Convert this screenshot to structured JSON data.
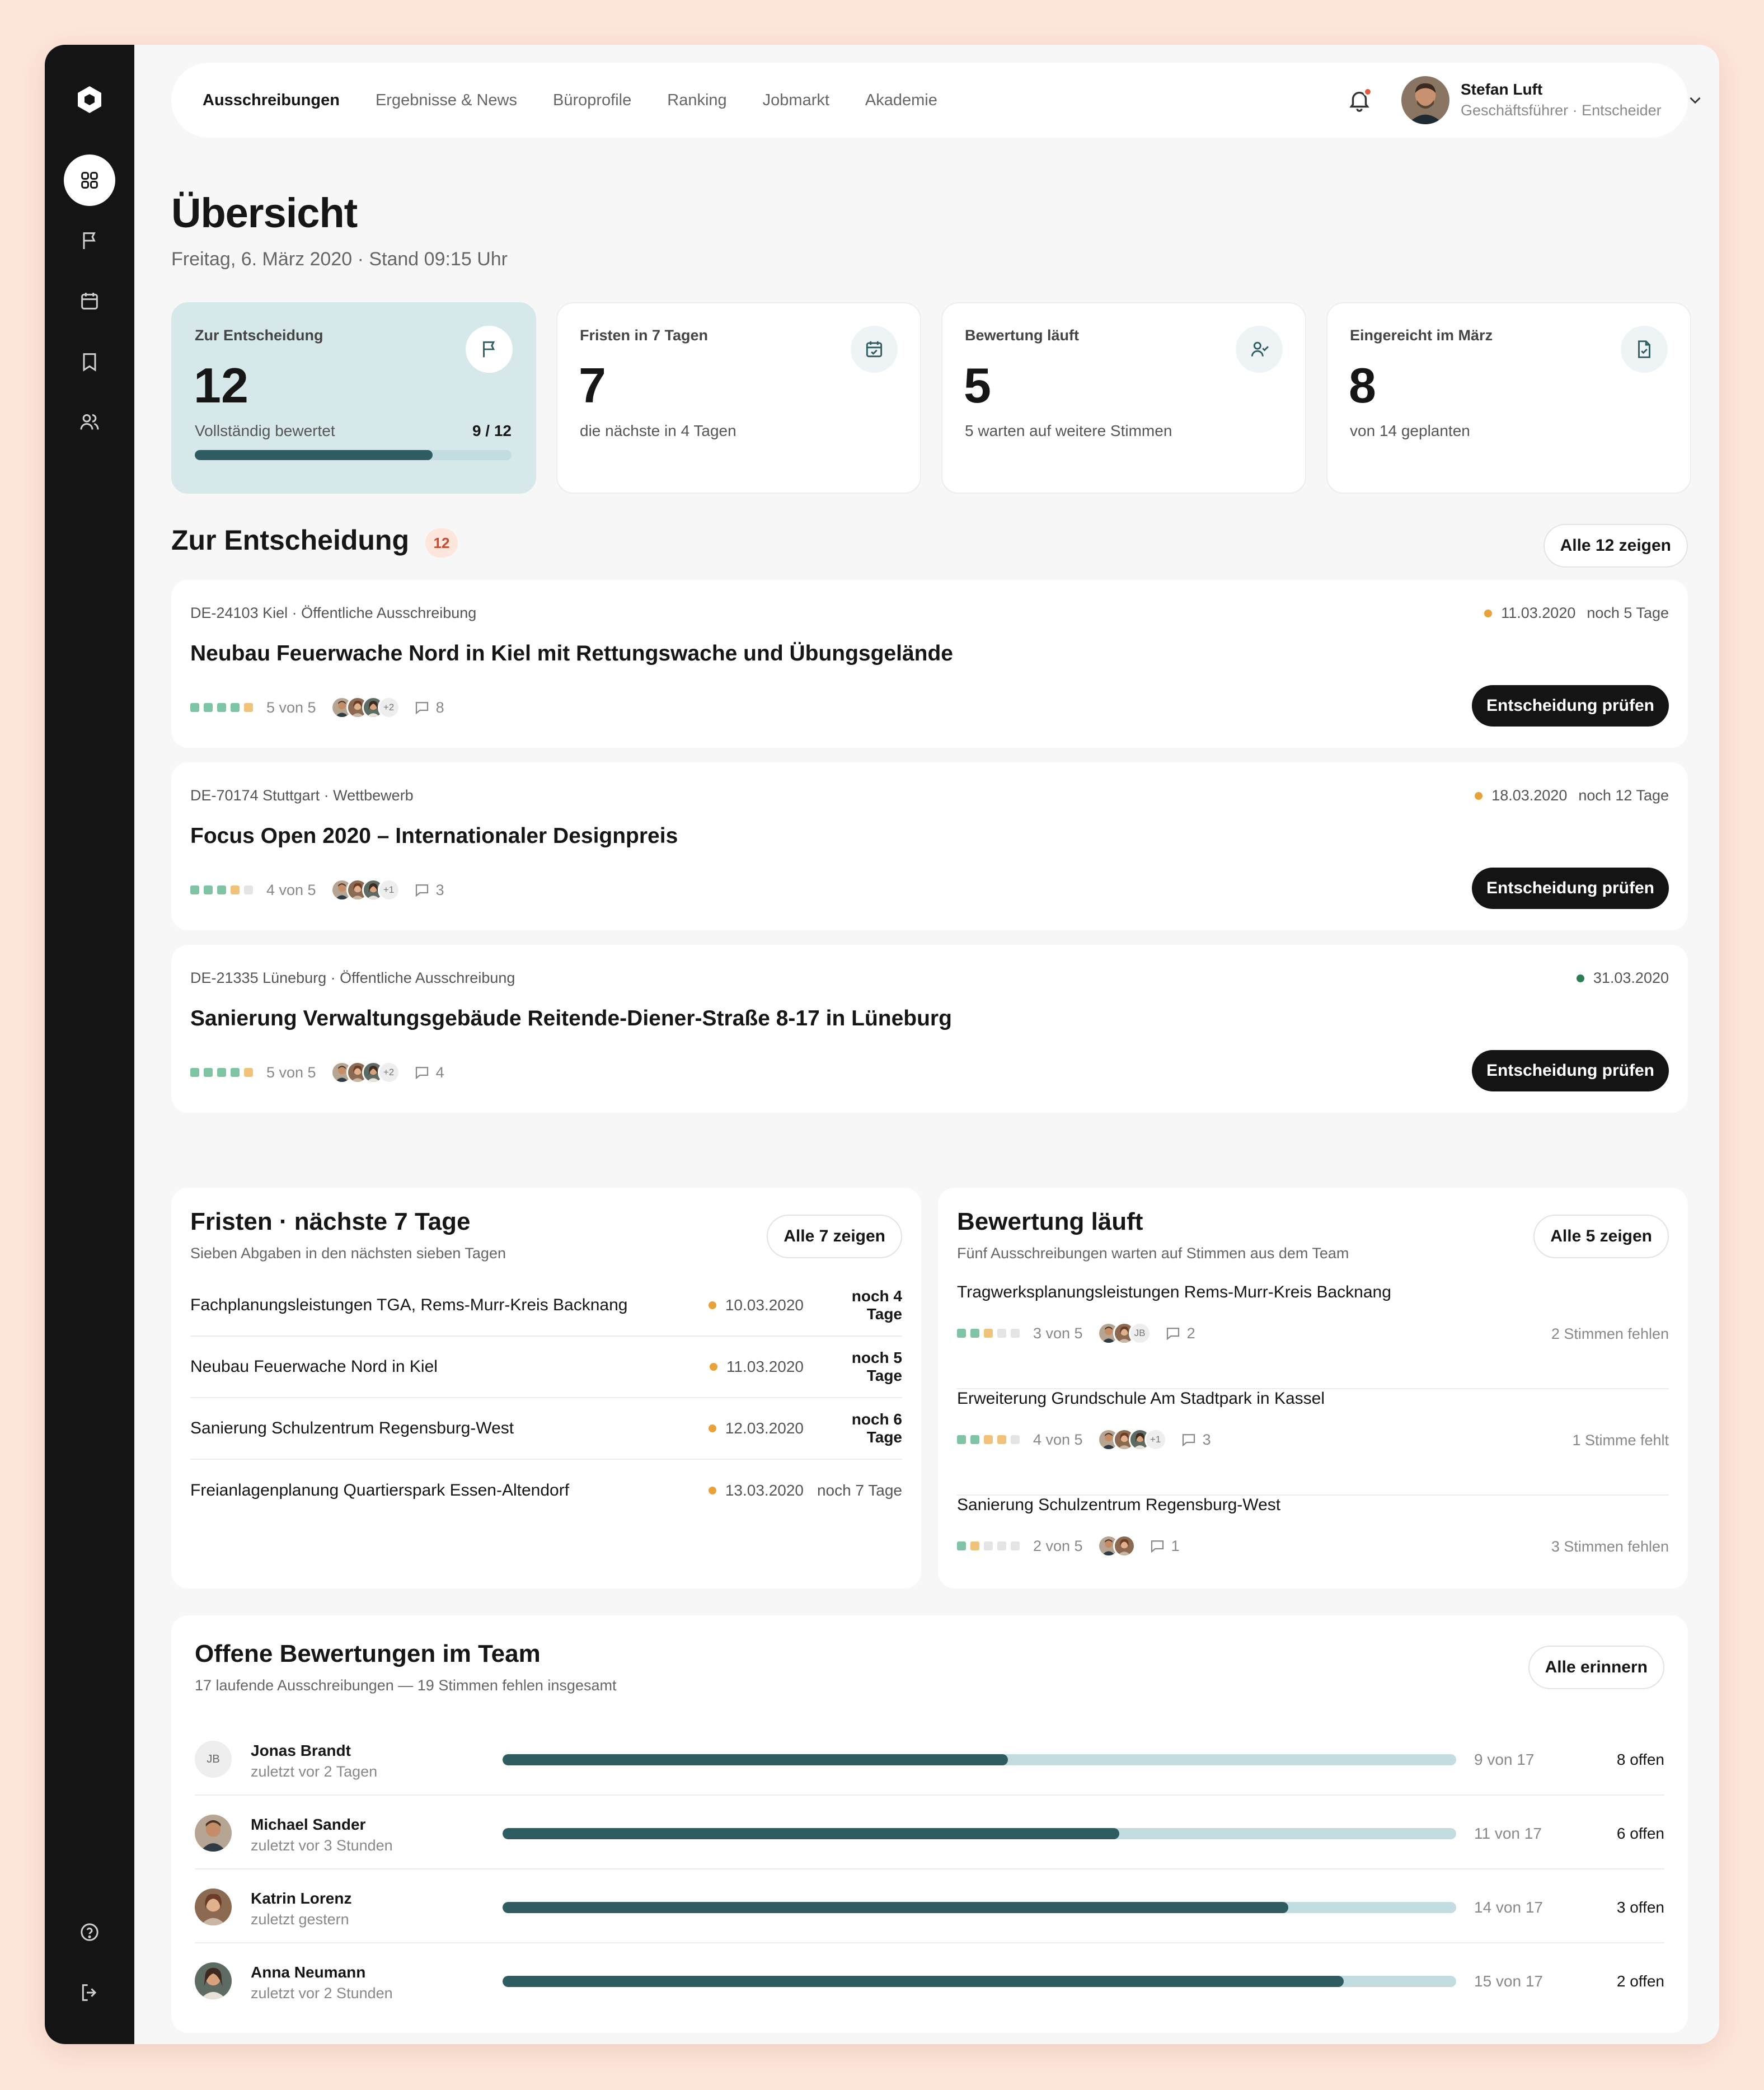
{
  "nav": {
    "items": [
      "Ausschreibungen",
      "Ergebnisse & News",
      "Büroprofile",
      "Ranking",
      "Jobmarkt",
      "Akademie"
    ],
    "active": "Ausschreibungen"
  },
  "user": {
    "name": "Stefan Luft",
    "role": "Geschäftsführer · Entscheider"
  },
  "page": {
    "title": "Übersicht",
    "subtitle": "Freitag, 6. März 2020 · Stand 09:15 Uhr"
  },
  "kpis": [
    {
      "label": "Zur Entscheidung",
      "value": "12",
      "sub": "Vollständig bewertet",
      "frac": "9 / 12",
      "progress": 0.75,
      "icon": "flag-icon"
    },
    {
      "label": "Fristen in 7 Tagen",
      "value": "7",
      "sub": "die nächste in 4 Tagen",
      "icon": "calendar-check-icon"
    },
    {
      "label": "Bewertung läuft",
      "value": "5",
      "sub": "5 warten auf weitere Stimmen",
      "icon": "user-check-icon"
    },
    {
      "label": "Eingereicht im März",
      "value": "8",
      "sub": "von 14 geplanten",
      "icon": "file-check-icon"
    }
  ],
  "decision": {
    "title": "Zur Entscheidung",
    "count": "12",
    "show_all": "Alle 12 zeigen",
    "button_label": "Entscheidung prüfen",
    "items": [
      {
        "meta": "DE-24103 Kiel · Öffentliche Ausschreibung",
        "date": "11.03.2020",
        "remaining": "noch 5 Tage",
        "status_color": "#e8a23a",
        "title": "Neubau Feuerwache Nord in Kiel mit Rettungswache und Übungsgelände",
        "squares": [
          "#7fc4a4",
          "#7fc4a4",
          "#7fc4a4",
          "#7fc4a4",
          "#f0c27a"
        ],
        "score": "5 von 5",
        "more": "+2",
        "comments": "8"
      },
      {
        "meta": "DE-70174 Stuttgart · Wettbewerb",
        "date": "18.03.2020",
        "remaining": "noch 12 Tage",
        "status_color": "#e8a23a",
        "title": "Focus Open 2020 – Internationaler Designpreis",
        "squares": [
          "#7fc4a4",
          "#7fc4a4",
          "#7fc4a4",
          "#f0c27a",
          "#e4e4e4"
        ],
        "score": "4 von 5",
        "more": "+1",
        "comments": "3"
      },
      {
        "meta": "DE-21335 Lüneburg · Öffentliche Ausschreibung",
        "date": "31.03.2020",
        "remaining": "",
        "status_color": "#2f7d55",
        "title": "Sanierung Verwaltungsgebäude Reitende-Diener-Straße 8-17 in Lüneburg",
        "squares": [
          "#7fc4a4",
          "#7fc4a4",
          "#7fc4a4",
          "#7fc4a4",
          "#f0c27a"
        ],
        "score": "5 von 5",
        "more": "+2",
        "comments": "4"
      }
    ]
  },
  "deadlines": {
    "title": "Fristen · nächste 7 Tage",
    "subtitle": "Sieben Abgaben in den nächsten sieben Tagen",
    "show_all": "Alle 7 zeigen",
    "items": [
      {
        "name": "Fachplanungsleistungen TGA, Rems-Murr-Kreis Backnang",
        "date": "10.03.2020",
        "remaining": "noch 4 Tage",
        "emphasis": true
      },
      {
        "name": "Neubau Feuerwache Nord in Kiel",
        "date": "11.03.2020",
        "remaining": "noch 5 Tage",
        "emphasis": true
      },
      {
        "name": "Sanierung Schulzentrum Regensburg-West",
        "date": "12.03.2020",
        "remaining": "noch 6 Tage",
        "emphasis": true
      },
      {
        "name": "Freianlagenplanung Quartierspark Essen-Altendorf",
        "date": "13.03.2020",
        "remaining": "noch 7 Tage",
        "emphasis": false
      }
    ]
  },
  "evaluation": {
    "title": "Bewertung läuft",
    "subtitle": "Fünf Ausschreibungen warten auf Stimmen aus dem Team",
    "show_all": "Alle 5 zeigen",
    "items": [
      {
        "name": "Tragwerksplanungsleistungen Rems-Murr-Kreis Backnang",
        "squares": [
          "#7fc4a4",
          "#7fc4a4",
          "#f0c27a",
          "#e4e4e4",
          "#e4e4e4"
        ],
        "score": "3 von 5",
        "initials": "JB",
        "comments": "2",
        "missing": "2 Stimmen fehlen"
      },
      {
        "name": "Erweiterung Grundschule Am Stadtpark in Kassel",
        "squares": [
          "#7fc4a4",
          "#7fc4a4",
          "#f0c27a",
          "#f0c27a",
          "#e4e4e4"
        ],
        "score": "4 von 5",
        "more": "+1",
        "comments": "3",
        "missing": "1 Stimme fehlt"
      },
      {
        "name": "Sanierung Schulzentrum Regensburg-West",
        "squares": [
          "#7fc4a4",
          "#f0c27a",
          "#e4e4e4",
          "#e4e4e4",
          "#e4e4e4"
        ],
        "score": "2 von 5",
        "comments": "1",
        "missing": "3 Stimmen fehlen"
      }
    ]
  },
  "team": {
    "title": "Offene Bewertungen im Team",
    "subtitle": "17 laufende Ausschreibungen — 19 Stimmen fehlen insgesamt",
    "remind_all": "Alle erinnern",
    "members": [
      {
        "initials": "JB",
        "name": "Jonas Brandt",
        "last": "zuletzt vor 2 Tagen",
        "count": "9 von 17",
        "open": "8 offen",
        "progress": 0.53
      },
      {
        "name": "Michael Sander",
        "last": "zuletzt vor 3 Stunden",
        "count": "11 von 17",
        "open": "6 offen",
        "progress": 0.647
      },
      {
        "name": "Katrin Lorenz",
        "last": "zuletzt gestern",
        "count": "14 von 17",
        "open": "3 offen",
        "progress": 0.824
      },
      {
        "name": "Anna Neumann",
        "last": "zuletzt vor 2 Stunden",
        "count": "15 von 17",
        "open": "2 offen",
        "progress": 0.882
      }
    ]
  },
  "colors": {
    "accent": "#2f5c60",
    "accent_light": "#c2dce0",
    "highlight_card": "#d6e8ea",
    "sidebar": "#141414",
    "background": "#fde6dc",
    "warning": "#e8a23a",
    "ok": "#2f7d55",
    "notification": "#e05a3c"
  }
}
